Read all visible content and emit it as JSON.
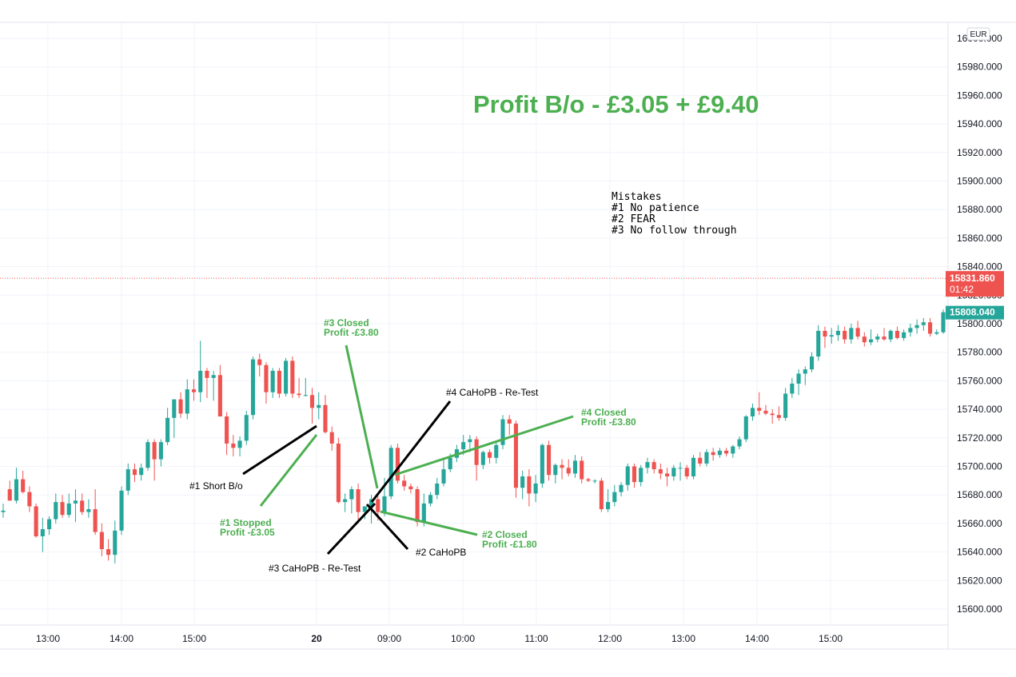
{
  "chart_data": {
    "type": "candlestick",
    "currency": "EUR",
    "ylim": [
      15590,
      16005
    ],
    "y_ticks": [
      "15600.000",
      "15620.000",
      "15640.000",
      "15660.000",
      "15680.000",
      "15700.000",
      "15720.000",
      "15740.000",
      "15760.000",
      "15780.000",
      "15800.000",
      "15820.000",
      "15840.000",
      "15860.000",
      "15880.000",
      "15900.000",
      "15920.000",
      "15940.000",
      "15960.000",
      "15980.000",
      "16000.000"
    ],
    "x_ticks": [
      "13:00",
      "14:00",
      "15:00",
      "20",
      "09:00",
      "10:00",
      "11:00",
      "12:00",
      "13:00",
      "14:00",
      "15:00"
    ],
    "price_line": {
      "value": 15831.86,
      "label": "15831.860",
      "countdown": "01:42",
      "color": "#ef5350"
    },
    "last_price": {
      "value": 15808.04,
      "label": "15808.040",
      "color": "#26a69a"
    },
    "up_color": "#26a69a",
    "down_color": "#ef5350",
    "candles": [
      [
        15668,
        15674,
        15664,
        15669
      ],
      [
        15684,
        15690,
        15676,
        15676
      ],
      [
        15676,
        15699,
        15674,
        15691
      ],
      [
        15691,
        15697,
        15681,
        15682
      ],
      [
        15682,
        15686,
        15668,
        15672
      ],
      [
        15672,
        15674,
        15650,
        15651
      ],
      [
        15651,
        15664,
        15640,
        15656
      ],
      [
        15656,
        15665,
        15652,
        15663
      ],
      [
        15663,
        15681,
        15660,
        15675
      ],
      [
        15675,
        15680,
        15664,
        15666
      ],
      [
        15666,
        15681,
        15664,
        15674
      ],
      [
        15674,
        15684,
        15661,
        15676
      ],
      [
        15676,
        15681,
        15666,
        15668
      ],
      [
        15668,
        15677,
        15664,
        15670
      ],
      [
        15670,
        15684,
        15652,
        15654
      ],
      [
        15654,
        15660,
        15637,
        15642
      ],
      [
        15642,
        15649,
        15634,
        15638
      ],
      [
        15638,
        15662,
        15632,
        15655
      ],
      [
        15655,
        15686,
        15652,
        15683
      ],
      [
        15683,
        15702,
        15680,
        15698
      ],
      [
        15698,
        15702,
        15689,
        15694
      ],
      [
        15694,
        15702,
        15690,
        15699
      ],
      [
        15699,
        15719,
        15697,
        15717
      ],
      [
        15717,
        15719,
        15690,
        15705
      ],
      [
        15705,
        15719,
        15700,
        15717
      ],
      [
        15717,
        15741,
        15715,
        15734
      ],
      [
        15734,
        15747,
        15720,
        15747
      ],
      [
        15747,
        15752,
        15734,
        15737
      ],
      [
        15737,
        15761,
        15733,
        15754
      ],
      [
        15754,
        15761,
        15746,
        15752
      ],
      [
        15752,
        15788,
        15745,
        15767
      ],
      [
        15767,
        15769,
        15748,
        15762
      ],
      [
        15762,
        15767,
        15746,
        15764
      ],
      [
        15764,
        15771,
        15738,
        15735
      ],
      [
        15735,
        15738,
        15708,
        15716
      ],
      [
        15716,
        15722,
        15707,
        15713
      ],
      [
        15713,
        15721,
        15707,
        15718
      ],
      [
        15718,
        15739,
        15715,
        15736
      ],
      [
        15736,
        15777,
        15733,
        15775
      ],
      [
        15775,
        15779,
        15763,
        15771
      ],
      [
        15771,
        15773,
        15744,
        15752
      ],
      [
        15752,
        15769,
        15748,
        15767
      ],
      [
        15767,
        15769,
        15748,
        15751
      ],
      [
        15751,
        15776,
        15749,
        15774
      ],
      [
        15774,
        15777,
        15748,
        15751
      ],
      [
        15751,
        15762,
        15748,
        15750
      ],
      [
        15750,
        15762,
        15749,
        15750
      ],
      [
        15750,
        15755,
        15730,
        15741
      ],
      [
        15741,
        15752,
        15733,
        15743
      ],
      [
        15743,
        15750,
        15723,
        15724
      ],
      [
        15724,
        15728,
        15711,
        15716
      ],
      [
        15716,
        15720,
        15674,
        15675
      ],
      [
        15675,
        15681,
        15668,
        15677
      ],
      [
        15677,
        15686,
        15667,
        15684
      ],
      [
        15684,
        15688,
        15660,
        15668
      ],
      [
        15668,
        15672,
        15663,
        15672
      ],
      [
        15672,
        15680,
        15660,
        15677
      ],
      [
        15677,
        15680,
        15662,
        15668
      ],
      [
        15668,
        15692,
        15665,
        15679
      ],
      [
        15679,
        15715,
        15677,
        15713
      ],
      [
        15713,
        15716,
        15688,
        15690
      ],
      [
        15690,
        15694,
        15683,
        15686
      ],
      [
        15686,
        15688,
        15681,
        15684
      ],
      [
        15684,
        15686,
        15658,
        15661
      ],
      [
        15661,
        15681,
        15658,
        15674
      ],
      [
        15674,
        15682,
        15672,
        15680
      ],
      [
        15680,
        15692,
        15677,
        15688
      ],
      [
        15688,
        15706,
        15686,
        15698
      ],
      [
        15698,
        15709,
        15696,
        15706
      ],
      [
        15706,
        15715,
        15703,
        15712
      ],
      [
        15712,
        15722,
        15708,
        15717
      ],
      [
        15717,
        15722,
        15710,
        15719
      ],
      [
        15719,
        15721,
        15690,
        15701
      ],
      [
        15701,
        15711,
        15698,
        15710
      ],
      [
        15710,
        15712,
        15702,
        15706
      ],
      [
        15706,
        15718,
        15702,
        15715
      ],
      [
        15715,
        15736,
        15712,
        15733
      ],
      [
        15733,
        15736,
        15722,
        15730
      ],
      [
        15730,
        15732,
        15678,
        15685
      ],
      [
        15685,
        15697,
        15677,
        15693
      ],
      [
        15693,
        15698,
        15672,
        15681
      ],
      [
        15681,
        15694,
        15675,
        15688
      ],
      [
        15688,
        15716,
        15685,
        15715
      ],
      [
        15715,
        15718,
        15690,
        15694
      ],
      [
        15694,
        15702,
        15688,
        15701
      ],
      [
        15701,
        15705,
        15691,
        15699
      ],
      [
        15699,
        15705,
        15693,
        15695
      ],
      [
        15695,
        15708,
        15692,
        15704
      ],
      [
        15704,
        15707,
        15688,
        15691
      ],
      [
        15691,
        15692,
        15689,
        15690
      ],
      [
        15690,
        15691,
        15688,
        15690
      ],
      [
        15690,
        15692,
        15668,
        15670
      ],
      [
        15670,
        15684,
        15668,
        15675
      ],
      [
        15675,
        15687,
        15672,
        15682
      ],
      [
        15682,
        15689,
        15679,
        15687
      ],
      [
        15687,
        15702,
        15683,
        15700
      ],
      [
        15700,
        15702,
        15685,
        15689
      ],
      [
        15689,
        15701,
        15686,
        15699
      ],
      [
        15699,
        15706,
        15695,
        15703
      ],
      [
        15703,
        15705,
        15695,
        15698
      ],
      [
        15698,
        15702,
        15691,
        15695
      ],
      [
        15695,
        15699,
        15686,
        15693
      ],
      [
        15693,
        15701,
        15690,
        15699
      ],
      [
        15699,
        15703,
        15690,
        15699
      ],
      [
        15699,
        15701,
        15691,
        15693
      ],
      [
        15693,
        15708,
        15691,
        15706
      ],
      [
        15706,
        15710,
        15700,
        15702
      ],
      [
        15702,
        15712,
        15700,
        15710
      ],
      [
        15710,
        15713,
        15704,
        15708
      ],
      [
        15708,
        15713,
        15706,
        15711
      ],
      [
        15711,
        15713,
        15707,
        15709
      ],
      [
        15709,
        15715,
        15706,
        15714
      ],
      [
        15714,
        15721,
        15712,
        15719
      ],
      [
        15719,
        15736,
        15717,
        15735
      ],
      [
        15735,
        15744,
        15732,
        15741
      ],
      [
        15741,
        15752,
        15736,
        15739
      ],
      [
        15739,
        15743,
        15736,
        15737
      ],
      [
        15737,
        15740,
        15730,
        15736
      ],
      [
        15736,
        15742,
        15732,
        15734
      ],
      [
        15734,
        15755,
        15732,
        15751
      ],
      [
        15751,
        15762,
        15748,
        15758
      ],
      [
        15758,
        15768,
        15750,
        15765
      ],
      [
        15765,
        15770,
        15757,
        15768
      ],
      [
        15768,
        15780,
        15766,
        15777
      ],
      [
        15777,
        15799,
        15774,
        15795
      ],
      [
        15795,
        15798,
        15783,
        15791
      ],
      [
        15791,
        15797,
        15786,
        15792
      ],
      [
        15792,
        15799,
        15788,
        15795
      ],
      [
        15795,
        15798,
        15786,
        15789
      ],
      [
        15789,
        15800,
        15786,
        15797
      ],
      [
        15797,
        15802,
        15789,
        15791
      ],
      [
        15791,
        15794,
        15784,
        15787
      ],
      [
        15787,
        15796,
        15785,
        15789
      ],
      [
        15789,
        15793,
        15787,
        15791
      ],
      [
        15791,
        15797,
        15788,
        15789
      ],
      [
        15789,
        15796,
        15787,
        15795
      ],
      [
        15795,
        15798,
        15789,
        15790
      ],
      [
        15790,
        15796,
        15788,
        15794
      ],
      [
        15794,
        15800,
        15791,
        15797
      ],
      [
        15797,
        15803,
        15793,
        15799
      ],
      [
        15799,
        15804,
        15795,
        15801
      ],
      [
        15801,
        15804,
        15791,
        15793
      ],
      [
        15793,
        15796,
        15792,
        15794
      ],
      [
        15794,
        15810,
        15793,
        15808.04
      ]
    ]
  },
  "headline": "Profit B/o - £3.05 + £9.40",
  "notes": [
    "Mistakes",
    "#1 No patience",
    "#2  FEAR",
    "#3  No follow through"
  ],
  "annotations": {
    "short_bo": "#1 Short B/o",
    "stopped_1": "#1 Stopped",
    "stopped_2": "Profit -£3.05",
    "cahopb_3": "#3 CaHoPB - Re-Test",
    "cahopb_2": "#2 CaHoPB",
    "cahopb_4": "#4 CaHoPB - Re-Test",
    "closed3_1": "#3 Closed",
    "closed3_2": "Profit -£3.80",
    "closed4_1": "#4 Closed",
    "closed4_2": "Profit -£3.80",
    "closed2_1": "#2 Closed",
    "closed2_2": "Profit -£1.80"
  },
  "colors": {
    "green_annotation": "#4caf50",
    "black_annotation": "#000000",
    "grid": "#f0f3fa"
  }
}
